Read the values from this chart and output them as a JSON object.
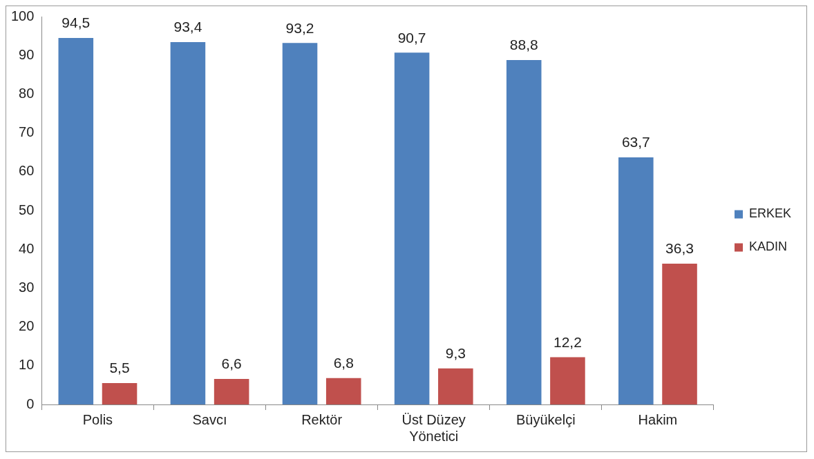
{
  "chart_data": {
    "type": "bar",
    "categories": [
      "Polis",
      "Savcı",
      "Rektör",
      "Üst Düzey Yönetici",
      "Büyükelçi",
      "Hakim"
    ],
    "series": [
      {
        "name": "ERKEK",
        "color": "#4f81bd",
        "values": [
          94.5,
          93.4,
          93.2,
          90.7,
          88.8,
          63.7
        ],
        "value_labels": [
          "94,5",
          "93,4",
          "93,2",
          "90,7",
          "88,8",
          "63,7"
        ]
      },
      {
        "name": "KADIN",
        "color": "#c0504d",
        "values": [
          5.5,
          6.6,
          6.8,
          9.3,
          12.2,
          36.3
        ],
        "value_labels": [
          "5,5",
          "6,6",
          "6,8",
          "9,3",
          "12,2",
          "36,3"
        ]
      }
    ],
    "ylim": [
      0,
      100
    ],
    "yticks": [
      0,
      10,
      20,
      30,
      40,
      50,
      60,
      70,
      80,
      90,
      100
    ],
    "grid": false,
    "legend": "right"
  }
}
